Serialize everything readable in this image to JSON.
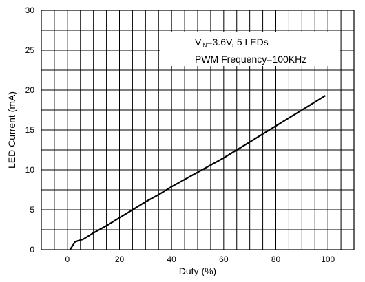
{
  "chart_data": {
    "type": "line",
    "xlabel": "Duty (%)",
    "ylabel": "LED Current (mA)",
    "xlim": [
      -10,
      110
    ],
    "ylim": [
      0,
      30
    ],
    "x_ticks": [
      0,
      20,
      40,
      60,
      80,
      100
    ],
    "y_ticks": [
      0,
      5,
      10,
      15,
      20,
      25,
      30
    ],
    "x_grid_step": 5,
    "y_grid_step": 2.5,
    "grid": true,
    "annotation": {
      "line1_prefix": "V",
      "line1_subscript": "IN",
      "line1_suffix": "=3.6V, 5 LEDs",
      "line2": "PWM Frequency=100KHz",
      "position": "top-right"
    },
    "series": [
      {
        "x": [
          1,
          2,
          3,
          4,
          6,
          8,
          10,
          15,
          20,
          25,
          30,
          35,
          40,
          45,
          50,
          55,
          60,
          65,
          70,
          75,
          80,
          85,
          90,
          95,
          99
        ],
        "y": [
          0,
          0.5,
          1.0,
          1.1,
          1.3,
          1.7,
          2.1,
          3.0,
          4.0,
          5.0,
          6.0,
          6.9,
          7.9,
          8.8,
          9.7,
          10.6,
          11.5,
          12.5,
          13.5,
          14.5,
          15.5,
          16.5,
          17.5,
          18.5,
          19.3
        ]
      }
    ]
  }
}
